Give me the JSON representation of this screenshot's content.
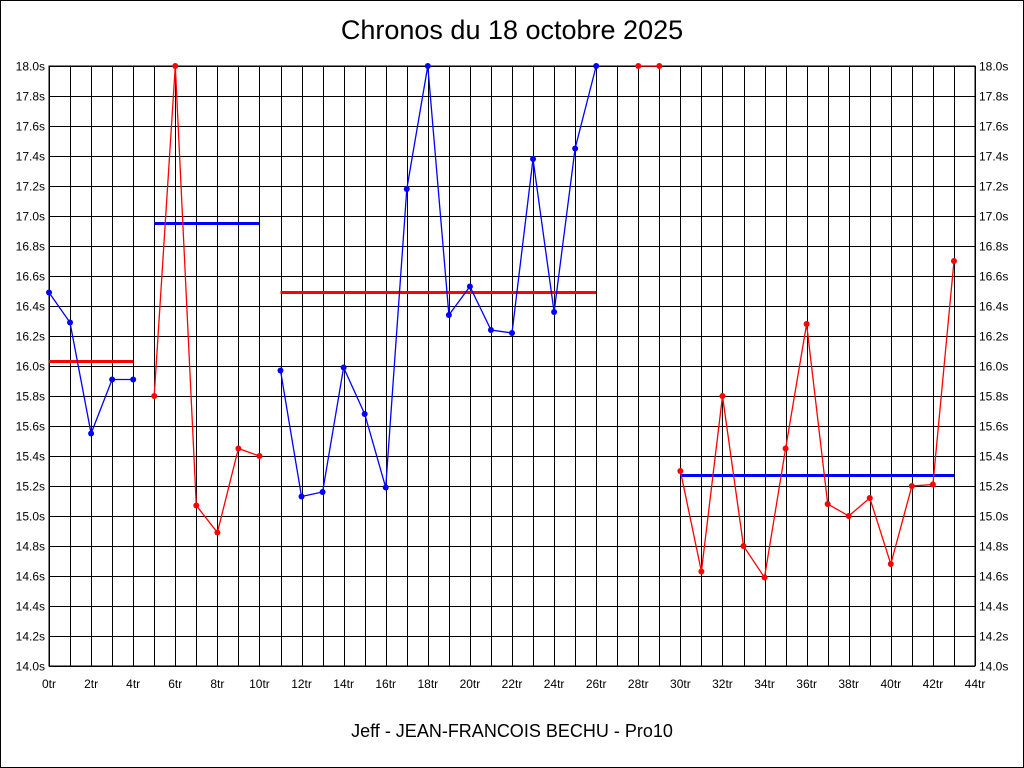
{
  "chart_data": {
    "type": "line",
    "title": "Chronos du 18 octobre 2025",
    "subtitle": "Jeff - JEAN-FRANCOIS BECHU - Pro10",
    "xlim": [
      0,
      44
    ],
    "ylim": [
      14.0,
      18.0
    ],
    "x_ticks": [
      "0tr",
      "2tr",
      "4tr",
      "6tr",
      "8tr",
      "10tr",
      "12tr",
      "14tr",
      "16tr",
      "18tr",
      "20tr",
      "22tr",
      "24tr",
      "26tr",
      "28tr",
      "30tr",
      "32tr",
      "34tr",
      "36tr",
      "38tr",
      "40tr",
      "42tr",
      "44tr"
    ],
    "y_ticks": [
      "14.0s",
      "14.2s",
      "14.4s",
      "14.6s",
      "14.8s",
      "15.0s",
      "15.2s",
      "15.4s",
      "15.6s",
      "15.8s",
      "16.0s",
      "16.2s",
      "16.4s",
      "16.6s",
      "16.8s",
      "17.0s",
      "17.2s",
      "17.4s",
      "17.6s",
      "17.8s",
      "18.0s"
    ],
    "grid": true,
    "colors": {
      "blue": "#0000ff",
      "red": "#ff0000",
      "grid": "#000000"
    },
    "segments": [
      {
        "color": "#0000ff",
        "points": [
          [
            0,
            16.49
          ],
          [
            1,
            16.29
          ],
          [
            2,
            15.55
          ],
          [
            3,
            15.91
          ],
          [
            4,
            15.91
          ]
        ]
      },
      {
        "color": "#ff0000",
        "points": [
          [
            5,
            15.8
          ],
          [
            6,
            18.0
          ],
          [
            7,
            15.07
          ],
          [
            8,
            14.89
          ],
          [
            9,
            15.45
          ],
          [
            10,
            15.4
          ]
        ]
      },
      {
        "color": "#0000ff",
        "points": [
          [
            11,
            15.97
          ],
          [
            12,
            15.13
          ],
          [
            13,
            15.16
          ],
          [
            14,
            15.99
          ],
          [
            15,
            15.68
          ],
          [
            16,
            15.19
          ],
          [
            17,
            17.18
          ],
          [
            18,
            18.0
          ],
          [
            19,
            16.34
          ],
          [
            20,
            16.53
          ],
          [
            21,
            16.24
          ],
          [
            22,
            16.22
          ],
          [
            23,
            17.38
          ],
          [
            24,
            16.36
          ],
          [
            25,
            17.45
          ],
          [
            26,
            18.0
          ]
        ]
      },
      {
        "color": "#ff0000",
        "points": [
          [
            28,
            18.0
          ],
          [
            29,
            18.0
          ]
        ]
      },
      {
        "color": "#ff0000",
        "points": [
          [
            30,
            15.3
          ],
          [
            31,
            14.63
          ],
          [
            32,
            15.8
          ],
          [
            33,
            14.8
          ],
          [
            34,
            14.59
          ],
          [
            35,
            15.45
          ],
          [
            36,
            16.28
          ],
          [
            37,
            15.08
          ],
          [
            38,
            15.0
          ],
          [
            39,
            15.12
          ],
          [
            40,
            14.68
          ],
          [
            41,
            15.2
          ],
          [
            42,
            15.21
          ],
          [
            43,
            16.7
          ]
        ]
      }
    ],
    "averages": [
      {
        "color": "#ff0000",
        "x": [
          0,
          4
        ],
        "y": 16.03
      },
      {
        "color": "#0000ff",
        "x": [
          5,
          10
        ],
        "y": 16.95
      },
      {
        "color": "#ff0000",
        "x": [
          11,
          26
        ],
        "y": 16.49
      },
      {
        "color": "#0000ff",
        "x": [
          30,
          43
        ],
        "y": 15.27
      }
    ]
  }
}
